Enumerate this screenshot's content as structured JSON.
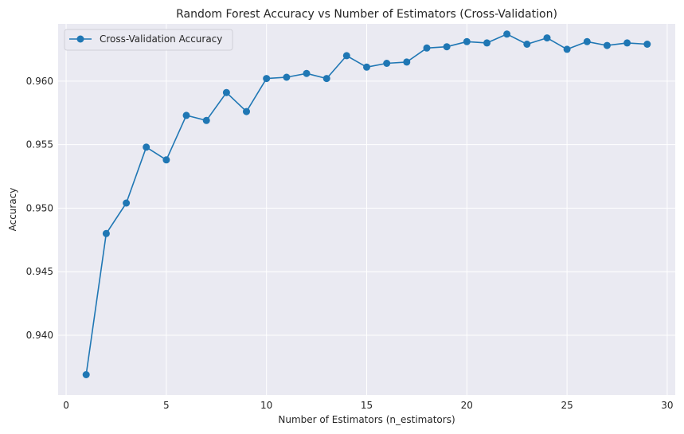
{
  "chart_data": {
    "type": "line",
    "title": "Random Forest Accuracy vs Number of Estimators (Cross-Validation)",
    "xlabel": "Number of Estimators (n_estimators)",
    "ylabel": "Accuracy",
    "xlim": [
      -0.4,
      30.4
    ],
    "ylim": [
      0.9353,
      0.9645
    ],
    "xticks": [
      0,
      5,
      10,
      15,
      20,
      25,
      30
    ],
    "yticks": [
      0.94,
      0.945,
      0.95,
      0.955,
      0.96
    ],
    "xtick_labels": [
      "0",
      "5",
      "10",
      "15",
      "20",
      "25",
      "30"
    ],
    "ytick_labels": [
      "0.940",
      "0.945",
      "0.950",
      "0.955",
      "0.960"
    ],
    "grid": true,
    "legend_position": "top-left",
    "background_color": "#eaeaf2",
    "grid_color": "#ffffff",
    "series": [
      {
        "name": "Cross-Validation Accuracy",
        "color": "#1f77b4",
        "marker": "circle",
        "x": [
          1,
          2,
          3,
          4,
          5,
          6,
          7,
          8,
          9,
          10,
          11,
          12,
          13,
          14,
          15,
          16,
          17,
          18,
          19,
          20,
          21,
          22,
          23,
          24,
          25,
          26,
          27,
          28,
          29
        ],
        "y": [
          0.9369,
          0.948,
          0.9504,
          0.9548,
          0.9538,
          0.9573,
          0.9569,
          0.9591,
          0.9576,
          0.9602,
          0.9603,
          0.9606,
          0.9602,
          0.962,
          0.9611,
          0.9614,
          0.9615,
          0.9626,
          0.9627,
          0.9631,
          0.963,
          0.9637,
          0.9629,
          0.9634,
          0.9625,
          0.9631,
          0.9628,
          0.963,
          0.9629
        ]
      }
    ]
  }
}
